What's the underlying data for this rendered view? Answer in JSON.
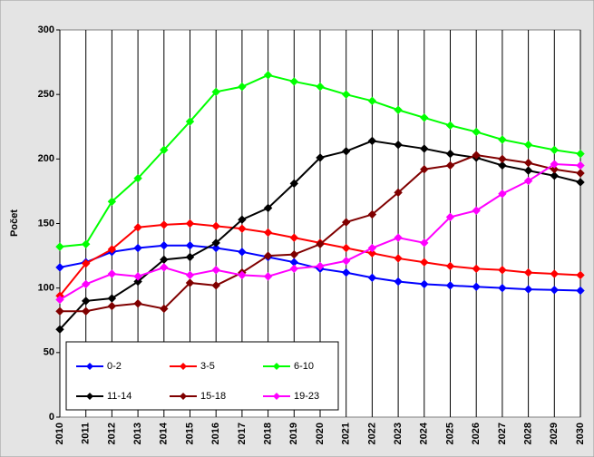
{
  "chart_data": {
    "type": "line",
    "y_label": "Počet",
    "categories": [
      "2010",
      "2011",
      "2012",
      "2013",
      "2014",
      "2015",
      "2016",
      "2017",
      "2018",
      "2019",
      "2020",
      "2021",
      "2022",
      "2023",
      "2024",
      "2025",
      "2026",
      "2027",
      "2028",
      "2029",
      "2030"
    ],
    "series": [
      {
        "name": "0-2",
        "color": "#0000ff",
        "values": [
          116,
          120,
          128,
          131,
          133,
          133,
          131,
          128,
          124,
          120,
          115,
          112,
          108,
          105,
          103,
          102,
          101,
          100,
          99,
          98.5,
          98
        ]
      },
      {
        "name": "3-5",
        "color": "#ff0000",
        "values": [
          94,
          119,
          130,
          147,
          149,
          150,
          148,
          146,
          143,
          139,
          135,
          131,
          127,
          123,
          120,
          117,
          115,
          114,
          112,
          111,
          110
        ]
      },
      {
        "name": "6-10",
        "color": "#00ff00",
        "values": [
          132,
          134,
          167,
          185,
          207,
          229,
          252,
          256,
          265,
          260,
          256,
          250,
          245,
          238,
          232,
          226,
          221,
          215,
          211,
          207,
          204
        ]
      },
      {
        "name": "11-14",
        "color": "#000000",
        "values": [
          68,
          90,
          92,
          105,
          122,
          124,
          135,
          153,
          162,
          181,
          201,
          206,
          214,
          211,
          208,
          204,
          201,
          195,
          191,
          187,
          182
        ]
      },
      {
        "name": "15-18",
        "color": "#800000",
        "values": [
          82,
          82,
          86,
          88,
          84,
          104,
          102,
          112,
          125,
          126,
          134,
          151,
          157,
          174,
          192,
          195,
          203,
          200,
          197,
          192,
          189
        ]
      },
      {
        "name": "19-23",
        "color": "#ff00ff",
        "values": [
          91,
          103,
          111,
          109,
          116,
          110,
          114,
          110,
          109,
          115,
          117,
          121,
          131,
          139,
          135,
          155,
          160,
          173,
          183,
          196,
          195
        ]
      }
    ],
    "ylim": [
      0,
      300
    ],
    "yticks": [
      0,
      50,
      100,
      150,
      200,
      250,
      300
    ],
    "grid": true,
    "legend": "lower-left"
  }
}
